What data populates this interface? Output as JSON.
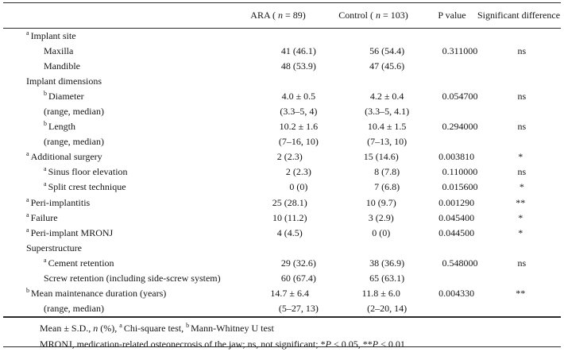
{
  "table": {
    "header": {
      "label": "",
      "ara_segments": [
        {
          "t": "ARA ( "
        },
        {
          "t": "n",
          "i": true
        },
        {
          "t": " = 89)"
        }
      ],
      "control_segments": [
        {
          "t": "Control ( "
        },
        {
          "t": "n",
          "i": true
        },
        {
          "t": " = 103)"
        }
      ],
      "p_label": "P value",
      "sig_label": "Significant difference"
    },
    "rows": [
      {
        "sup": "a",
        "label": "Implant site",
        "indent": 1,
        "ara": "",
        "control": "",
        "p": "",
        "sig": ""
      },
      {
        "sup": "",
        "label": "Maxilla",
        "indent": 2,
        "ara": "41 (46.1)",
        "control": "56 (54.4)",
        "p": "0.311000",
        "sig": "ns"
      },
      {
        "sup": "",
        "label": "Mandible",
        "indent": 2,
        "ara": "48 (53.9)",
        "control": "47 (45.6)",
        "p": "",
        "sig": ""
      },
      {
        "sup": "",
        "label": "Implant dimensions",
        "indent": 1,
        "ara": "",
        "control": "",
        "p": "",
        "sig": ""
      },
      {
        "sup": "b",
        "label": "Diameter",
        "indent": 2,
        "ara": "4.0 ± 0.5",
        "control": "4.2 ± 0.4",
        "p": "0.054700",
        "sig": "ns"
      },
      {
        "sup": "",
        "label": "(range, median)",
        "indent": 2,
        "ara": "(3.3–5, 4)",
        "control": "(3.3–5, 4.1)",
        "p": "",
        "sig": ""
      },
      {
        "sup": "b",
        "label": "Length",
        "indent": 2,
        "ara": "10.2 ± 1.6",
        "control": "10.4 ± 1.5",
        "p": "0.294000",
        "sig": "ns"
      },
      {
        "sup": "",
        "label": "(range, median)",
        "indent": 2,
        "ara": "(7–16, 10)",
        "control": "(7–13, 10)",
        "p": "",
        "sig": ""
      },
      {
        "sup": "a",
        "label": "Additional surgery",
        "indent": 1,
        "ara": "2 (2.3)",
        "control": "15 (14.6)",
        "p": "0.003810",
        "sig": "*"
      },
      {
        "sup": "a",
        "label": "Sinus floor elevation",
        "indent": 2,
        "ara": "2 (2.3)",
        "control": "8 (7.8)",
        "p": "0.110000",
        "sig": "ns"
      },
      {
        "sup": "a",
        "label": "Split crest technique",
        "indent": 2,
        "ara": "0 (0)",
        "control": "7 (6.8)",
        "p": "0.015600",
        "sig": "*"
      },
      {
        "sup": "a",
        "label": "Peri-implantitis",
        "indent": 1,
        "ara": "25 (28.1)",
        "control": "10 (9.7)",
        "p": "0.001290",
        "sig": "**"
      },
      {
        "sup": "a",
        "label": "Failure",
        "indent": 1,
        "ara": "10 (11.2)",
        "control": "3 (2.9)",
        "p": "0.045400",
        "sig": "*"
      },
      {
        "sup": "a",
        "label": "Peri-implant MRONJ",
        "indent": 1,
        "ara": "4 (4.5)",
        "control": "0 (0)",
        "p": "0.044500",
        "sig": "*"
      },
      {
        "sup": "",
        "label": "Superstructure",
        "indent": 1,
        "ara": "",
        "control": "",
        "p": "",
        "sig": ""
      },
      {
        "sup": "a",
        "label": "Cement retention",
        "indent": 2,
        "ara": "29 (32.6)",
        "control": "38 (36.9)",
        "p": "0.548000",
        "sig": "ns"
      },
      {
        "sup": "",
        "label": "Screw retention (including side-screw system)",
        "indent": 2,
        "ara": "60 (67.4)",
        "control": "65 (63.1)",
        "p": "",
        "sig": ""
      },
      {
        "sup": "b",
        "label": "Mean maintenance duration (years)",
        "indent": 1,
        "ara": "14.7 ± 6.4",
        "control": "11.8 ± 6.0",
        "p": "0.004330",
        "sig": "**"
      },
      {
        "sup": "",
        "label": "(range, median)",
        "indent": 2,
        "ara": "(5–27, 13)",
        "control": "(2–20, 14)",
        "p": "",
        "sig": ""
      }
    ],
    "footnotes": [
      [
        {
          "t": "Mean ± S.D., "
        },
        {
          "t": "n",
          "i": true
        },
        {
          "t": " (%),  "
        },
        {
          "t": "a",
          "sup": true
        },
        {
          "t": "Chi-square test, "
        },
        {
          "t": "b",
          "sup": true
        },
        {
          "t": "Mann-Whitney U test"
        }
      ],
      [
        {
          "t": "MRONJ, medication-related osteonecrosis of the jaw; ns, not significant; *"
        },
        {
          "t": "P",
          "i": true
        },
        {
          "t": " < 0.05, **"
        },
        {
          "t": "P",
          "i": true
        },
        {
          "t": " < 0.01"
        }
      ]
    ]
  }
}
